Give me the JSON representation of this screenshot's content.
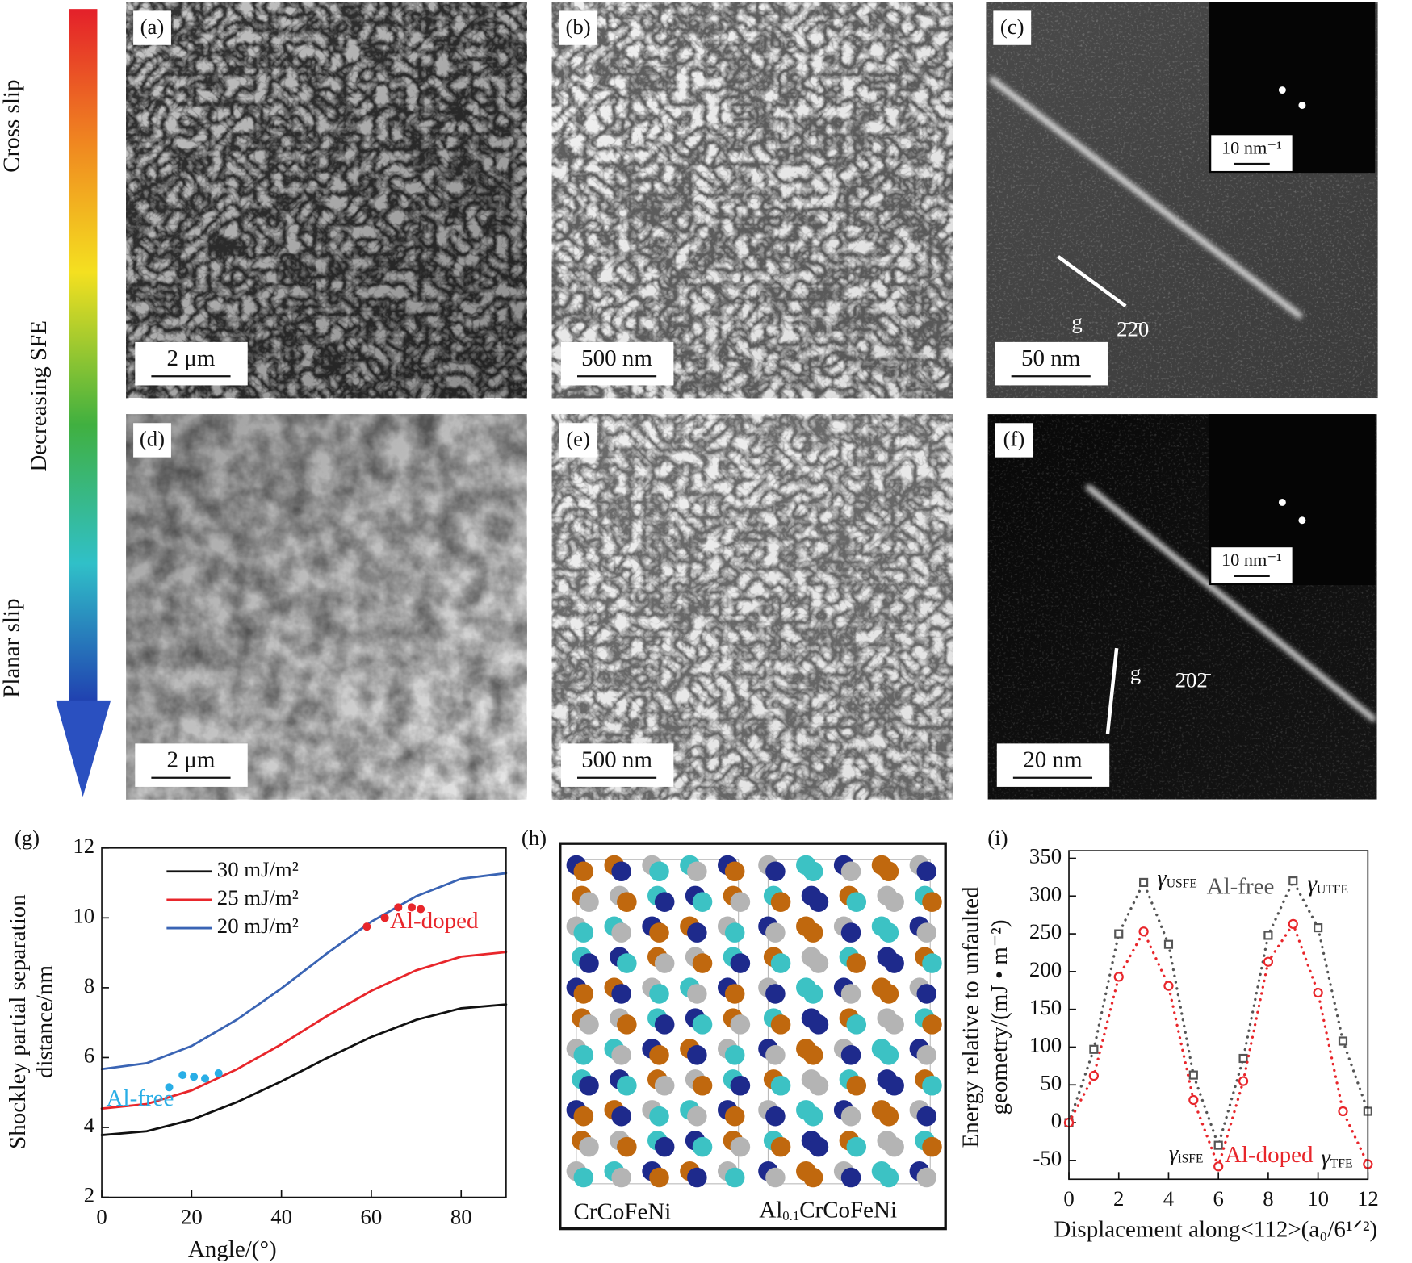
{
  "arrow": {
    "top": "Cross slip",
    "middle": "Decreasing SFE",
    "bottom": "Planar slip"
  },
  "micrographs": [
    {
      "label": "(a)",
      "scale_bar": "2 μm"
    },
    {
      "label": "(b)",
      "scale_bar": "500 nm"
    },
    {
      "label": "(c)",
      "scale_bar": "50 nm",
      "inset_scale": "10 nm⁻¹",
      "g": "g",
      "g_vector": "2̄2̄0"
    },
    {
      "label": "(d)",
      "scale_bar": "2 μm"
    },
    {
      "label": "(e)",
      "scale_bar": "500 nm"
    },
    {
      "label": "(f)",
      "scale_bar": "20 nm",
      "inset_scale": "10 nm⁻¹",
      "g": "g",
      "g_vector": "2̄02̄"
    }
  ],
  "structure": {
    "label": "(h)",
    "left": "CrCoFeNi",
    "right": {
      "base": "Al",
      "subscript": "0.1",
      "rest": "CrCoFeNi"
    }
  },
  "chart_data": [
    {
      "type": "line",
      "panel_label": "(g)",
      "x_label": "Angle/(°)",
      "y_label": [
        "Shockley partial separation",
        "distance/nm"
      ],
      "x": [
        0,
        10,
        20,
        30,
        40,
        50,
        60,
        70,
        80,
        90
      ],
      "series": [
        {
          "name": "30 mJ/m²",
          "color": "#111111",
          "values": [
            3.78,
            3.89,
            4.22,
            4.72,
            5.32,
            5.98,
            6.59,
            7.08,
            7.41,
            7.52
          ]
        },
        {
          "name": "25 mJ/m²",
          "color": "#e8262b",
          "values": [
            4.54,
            4.67,
            5.06,
            5.66,
            6.38,
            7.18,
            7.91,
            8.5,
            8.89,
            9.02
          ]
        },
        {
          "name": "20 mJ/m²",
          "color": "#3a64b4",
          "values": [
            5.67,
            5.84,
            6.33,
            7.08,
            7.98,
            8.97,
            9.89,
            10.62,
            11.12,
            11.28
          ]
        }
      ],
      "points": [
        {
          "name": "Al-doped",
          "color": "#e8262b",
          "x": [
            59,
            63,
            66,
            69,
            71
          ],
          "y": [
            9.75,
            10.0,
            10.3,
            10.3,
            10.25
          ]
        },
        {
          "name": "Al-free",
          "color": "#29aee6",
          "x": [
            15,
            18,
            20.5,
            23,
            26
          ],
          "y": [
            5.15,
            5.5,
            5.45,
            5.4,
            5.55
          ]
        }
      ],
      "xlim": [
        0,
        90
      ],
      "xticks": [
        0,
        20,
        40,
        60,
        80
      ],
      "ylim": [
        2,
        12
      ],
      "yticks": [
        2,
        4,
        6,
        8,
        10,
        12
      ],
      "legend": "upper left"
    },
    {
      "type": "line",
      "panel_label": "(i)",
      "x_label": "Displacement along<112>(a₀/6¹ᐟ²)",
      "y_label": [
        "Energy relative to unfaulted",
        "geometry/(mJ • m⁻²)"
      ],
      "x": [
        0,
        1,
        2,
        3,
        4,
        5,
        6,
        7,
        8,
        9,
        10,
        11,
        12
      ],
      "series": [
        {
          "name": "Al-free",
          "color": "#555555",
          "marker": "square",
          "values": [
            0,
            97,
            250,
            318,
            236,
            63,
            -30,
            85,
            248,
            320,
            258,
            108,
            15
          ]
        },
        {
          "name": "Al-doped",
          "color": "#e8262b",
          "marker": "circle",
          "values": [
            0,
            62,
            193,
            253,
            181,
            30,
            -58,
            55,
            213,
            263,
            172,
            15,
            -55
          ]
        }
      ],
      "line_style": "dotted",
      "annotations": [
        {
          "symbol": "γ",
          "sub": "USFE"
        },
        {
          "symbol": "γ",
          "sub": "UTFE"
        },
        {
          "symbol": "γ",
          "sub": "iSFE"
        },
        {
          "symbol": "γ",
          "sub": "TFE"
        }
      ],
      "xlim": [
        0,
        12
      ],
      "xticks": [
        0,
        2,
        4,
        6,
        8,
        10,
        12
      ],
      "ylim": [
        -75,
        360
      ],
      "yticks": [
        -50,
        0,
        50,
        100,
        150,
        200,
        250,
        300,
        350
      ],
      "legend": "none"
    }
  ]
}
